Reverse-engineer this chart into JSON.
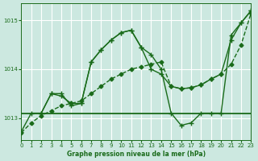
{
  "background_color": "#cce8e0",
  "grid_color": "#ffffff",
  "line_color": "#1a6b1a",
  "xlabel": "Graphe pression niveau de la mer (hPa)",
  "xlim": [
    0,
    23
  ],
  "ylim": [
    1012.55,
    1015.35
  ],
  "yticks": [
    1013,
    1014,
    1015
  ],
  "xticks": [
    0,
    1,
    2,
    3,
    4,
    5,
    6,
    7,
    8,
    9,
    10,
    11,
    12,
    13,
    14,
    15,
    16,
    17,
    18,
    19,
    20,
    21,
    22,
    23
  ],
  "series": [
    {
      "x": [
        0,
        1,
        2,
        3,
        4,
        5,
        6,
        7,
        8,
        9,
        10,
        11,
        12,
        13,
        14,
        15,
        16,
        17,
        18,
        19,
        20,
        21,
        22,
        23
      ],
      "y": [
        1012.7,
        1012.9,
        1013.05,
        1013.15,
        1013.25,
        1013.3,
        1013.35,
        1013.5,
        1013.65,
        1013.8,
        1013.9,
        1014.0,
        1014.05,
        1014.1,
        1014.15,
        1013.65,
        1013.6,
        1013.62,
        1013.68,
        1013.8,
        1013.9,
        1014.1,
        1014.5,
        1015.15
      ],
      "marker": "D",
      "markersize": 2.5,
      "linewidth": 1.0,
      "linestyle": "--"
    },
    {
      "x": [
        0,
        1,
        2,
        3,
        4,
        5,
        6,
        7,
        8,
        9,
        10,
        11,
        12,
        13,
        14,
        15,
        16,
        17,
        18,
        19,
        20,
        21,
        22,
        23
      ],
      "y": [
        1012.72,
        1013.1,
        1013.1,
        1013.5,
        1013.5,
        1013.25,
        1013.3,
        1014.15,
        1014.4,
        1014.6,
        1014.75,
        1014.8,
        1014.45,
        1014.3,
        1014.0,
        1013.1,
        1012.85,
        1012.9,
        1013.1,
        1013.1,
        1013.1,
        1014.7,
        1014.95,
        1015.2
      ],
      "marker": "+",
      "markersize": 5,
      "linewidth": 1.0,
      "linestyle": "-"
    },
    {
      "x": [
        0,
        23
      ],
      "y": [
        1013.1,
        1013.1
      ],
      "marker": null,
      "markersize": 0,
      "linewidth": 1.3,
      "linestyle": "-"
    },
    {
      "x": [
        2,
        3,
        4,
        5,
        6,
        7,
        8,
        9,
        10,
        11,
        12,
        13,
        14,
        15,
        16,
        17,
        18,
        19,
        20,
        21,
        22,
        23
      ],
      "y": [
        1013.1,
        1013.5,
        1013.45,
        1013.3,
        1013.3,
        1014.15,
        1014.4,
        1014.6,
        1014.75,
        1014.8,
        1014.45,
        1014.0,
        1013.9,
        1013.65,
        1013.6,
        1013.62,
        1013.68,
        1013.8,
        1013.9,
        1014.6,
        1014.95,
        1015.2
      ],
      "marker": "+",
      "markersize": 4,
      "linewidth": 1.0,
      "linestyle": "-"
    }
  ]
}
